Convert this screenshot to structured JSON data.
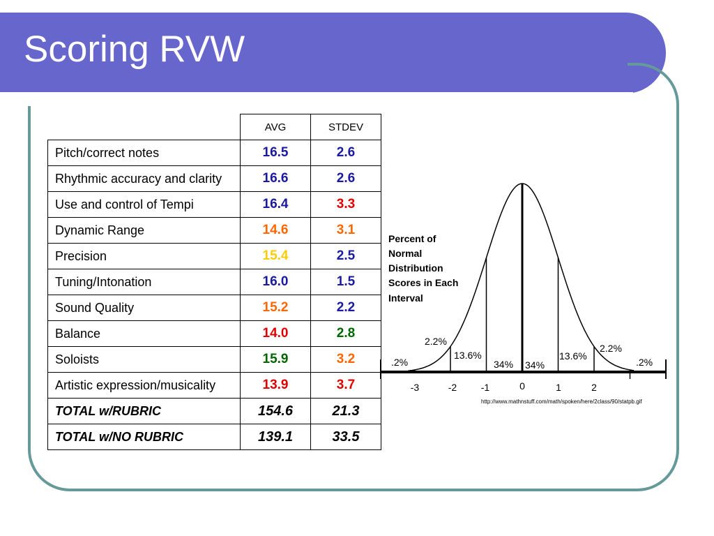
{
  "slide": {
    "title": "Scoring RVW"
  },
  "table": {
    "columns": [
      "AVG",
      "STDEV"
    ],
    "rows": [
      {
        "label": "Pitch/correct notes",
        "avg": "16.5",
        "stdev": "2.6",
        "avg_color": "#1a1aa0",
        "stdev_color": "#1a1aa0"
      },
      {
        "label": "Rhythmic accuracy and clarity",
        "avg": "16.6",
        "stdev": "2.6",
        "avg_color": "#1a1aa0",
        "stdev_color": "#1a1aa0"
      },
      {
        "label": "Use and control of Tempi",
        "avg": "16.4",
        "stdev": "3.3",
        "avg_color": "#1a1aa0",
        "stdev_color": "#e00000"
      },
      {
        "label": "Dynamic Range",
        "avg": "14.6",
        "stdev": "3.1",
        "avg_color": "#ff6600",
        "stdev_color": "#ff6600"
      },
      {
        "label": "Precision",
        "avg": "15.4",
        "stdev": "2.5",
        "avg_color": "#ffcc00",
        "stdev_color": "#1a1aa0"
      },
      {
        "label": "Tuning/Intonation",
        "avg": "16.0",
        "stdev": "1.5",
        "avg_color": "#1a1aa0",
        "stdev_color": "#1a1aa0"
      },
      {
        "label": "Sound Quality",
        "avg": "15.2",
        "stdev": "2.2",
        "avg_color": "#ff6600",
        "stdev_color": "#1a1aa0"
      },
      {
        "label": "Balance",
        "avg": "14.0",
        "stdev": "2.8",
        "avg_color": "#e00000",
        "stdev_color": "#006600"
      },
      {
        "label": "Soloists",
        "avg": "15.9",
        "stdev": "3.2",
        "avg_color": "#006600",
        "stdev_color": "#ff6600"
      },
      {
        "label": "Artistic expression/musicality",
        "avg": "13.9",
        "stdev": "3.7",
        "avg_color": "#e00000",
        "stdev_color": "#e00000"
      }
    ],
    "totals": [
      {
        "label": "TOTAL w/RUBRIC",
        "avg": "154.6",
        "stdev": "21.3"
      },
      {
        "label": "TOTAL w/NO RUBRIC",
        "avg": "139.1",
        "stdev": "33.5"
      }
    ]
  },
  "figure": {
    "caption_lines": [
      "Percent of",
      "Normal",
      "Distribution",
      "Scores in Each",
      "Interval"
    ],
    "pct_far_left": ".2%",
    "pct_left_2": "2.2%",
    "pct_left_1": "13.6%",
    "pct_left_0": "34%",
    "pct_right_0": "34%",
    "pct_right_1": "13.6%",
    "pct_right_2": "2.2%",
    "pct_far_right": ".2%",
    "axis_ticks": [
      "-3",
      "-2",
      "-1",
      "0",
      "1",
      "2"
    ],
    "source_url": "http://www.mathnstuff.com/math/spoken/here/2class/90/statpb.gif"
  }
}
